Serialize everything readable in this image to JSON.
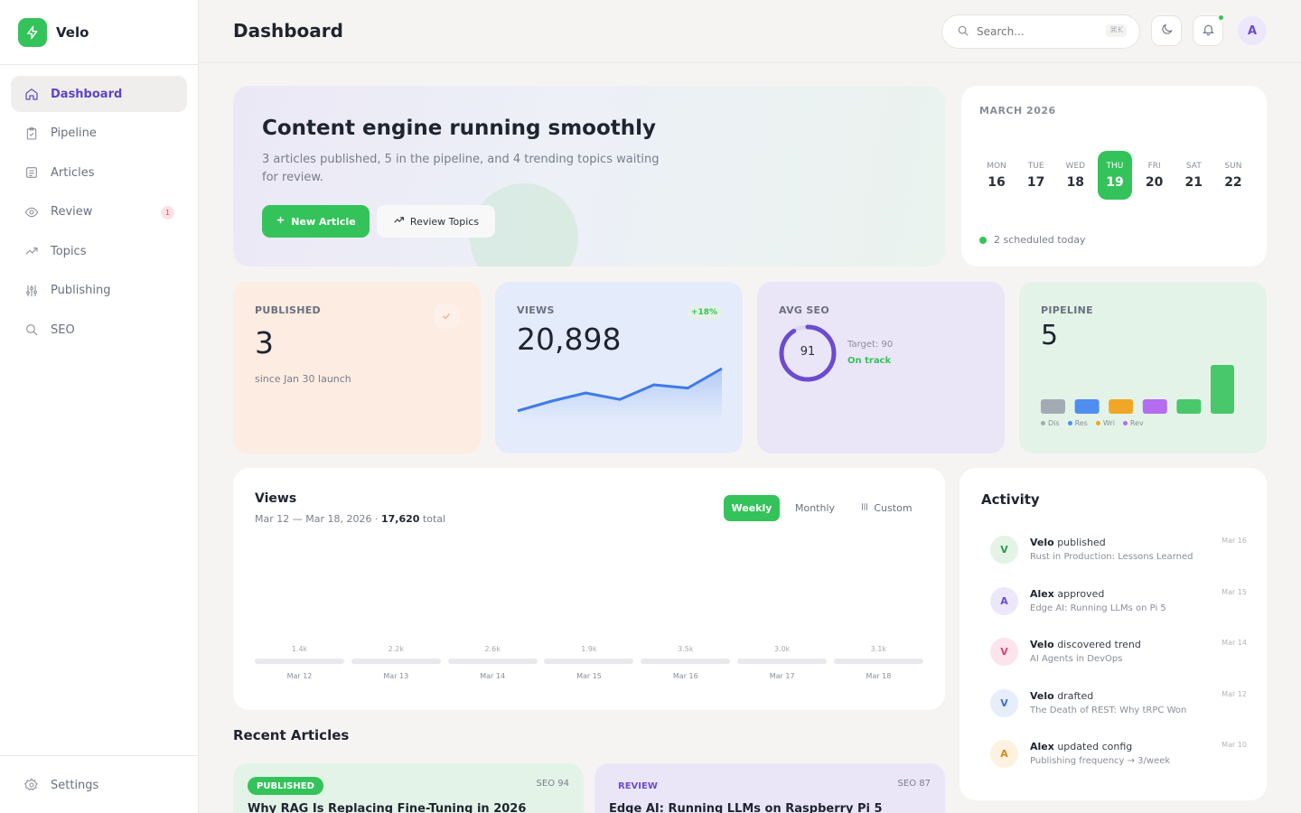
{
  "brand": {
    "name": "Velo"
  },
  "sidebar": {
    "items": [
      {
        "label": "Dashboard",
        "icon": "home-icon"
      },
      {
        "label": "Pipeline",
        "icon": "clipboard-icon"
      },
      {
        "label": "Articles",
        "icon": "document-icon"
      },
      {
        "label": "Review",
        "icon": "eye-icon",
        "badge": "1"
      },
      {
        "label": "Topics",
        "icon": "trending-icon"
      },
      {
        "label": "Publishing",
        "icon": "sliders-icon"
      },
      {
        "label": "SEO",
        "icon": "search-icon"
      }
    ],
    "settings_label": "Settings"
  },
  "header": {
    "title": "Dashboard",
    "search_placeholder": "Search...",
    "search_shortcut": "⌘K",
    "avatar_initial": "A"
  },
  "hero": {
    "title": "Content engine running smoothly",
    "subtitle": "3 articles published, 5 in the pipeline, and 4 trending topics waiting for review.",
    "primary_button": "New Article",
    "secondary_button": "Review Topics"
  },
  "calendar": {
    "month": "MARCH 2026",
    "days": [
      {
        "dow": "MON",
        "num": "16"
      },
      {
        "dow": "TUE",
        "num": "17"
      },
      {
        "dow": "WED",
        "num": "18"
      },
      {
        "dow": "THU",
        "num": "19",
        "today": true
      },
      {
        "dow": "FRI",
        "num": "20"
      },
      {
        "dow": "SAT",
        "num": "21"
      },
      {
        "dow": "SUN",
        "num": "22"
      }
    ],
    "note": "2 scheduled today"
  },
  "stats": {
    "published": {
      "label": "PUBLISHED",
      "value": "3",
      "sub": "since Jan 30 launch"
    },
    "views": {
      "label": "VIEWS",
      "value": "20,898",
      "trend": "+18%",
      "sparkline": [
        12,
        18,
        23,
        19,
        28,
        26,
        38
      ]
    },
    "seo": {
      "label": "AVG SEO",
      "value": "91",
      "target": "Target: 90",
      "status": "On track",
      "fraction": 0.91
    },
    "pipeline": {
      "label": "PIPELINE",
      "value": "5",
      "bars": [
        {
          "color": "#a4aab3",
          "value": 1
        },
        {
          "color": "#4f8df0",
          "value": 1
        },
        {
          "color": "#f0a728",
          "value": 1
        },
        {
          "color": "#b46cf0",
          "value": 1
        },
        {
          "color": "#49c76b",
          "value": 1
        },
        {
          "color": "#49c76b",
          "value": 4
        }
      ],
      "legend": [
        {
          "label": "Dis",
          "color": "#a4aab3"
        },
        {
          "label": "Res",
          "color": "#4f8df0"
        },
        {
          "label": "Wri",
          "color": "#f0a728"
        },
        {
          "label": "Rev",
          "color": "#b46cf0"
        }
      ]
    }
  },
  "views_chart": {
    "title": "Views",
    "range": "Mar 12 — Mar 18, 2026 · ",
    "total_value": "17,620",
    "total_label": " total",
    "tabs": [
      "Weekly",
      "Monthly",
      "Custom"
    ],
    "points": [
      {
        "date": "Mar 12",
        "value": "1.4k"
      },
      {
        "date": "Mar 13",
        "value": "2.2k"
      },
      {
        "date": "Mar 14",
        "value": "2.6k"
      },
      {
        "date": "Mar 15",
        "value": "1.9k"
      },
      {
        "date": "Mar 16",
        "value": "3.5k"
      },
      {
        "date": "Mar 17",
        "value": "3.0k"
      },
      {
        "date": "Mar 18",
        "value": "3.1k"
      }
    ]
  },
  "recent_articles": {
    "title": "Recent Articles",
    "items": [
      {
        "status": "PUBLISHED",
        "seo": "SEO 94",
        "title": "Why RAG Is Replacing Fine-Tuning in 2026"
      },
      {
        "status": "REVIEW",
        "seo": "SEO 87",
        "title": "Edge AI: Running LLMs on Raspberry Pi 5"
      }
    ]
  },
  "activity": {
    "title": "Activity",
    "items": [
      {
        "initial": "V",
        "actor": "Velo",
        "action": " published",
        "detail": "Rust in Production: Lessons Learned",
        "date": "Mar 16",
        "bg": "#e3f4e6",
        "fg": "#2f9a4e"
      },
      {
        "initial": "A",
        "actor": "Alex",
        "action": " approved",
        "detail": "Edge AI: Running LLMs on Pi 5",
        "date": "Mar 15",
        "bg": "#ede7fb",
        "fg": "#6a4bd1"
      },
      {
        "initial": "V",
        "actor": "Velo",
        "action": " discovered trend",
        "detail": "AI Agents in DevOps",
        "date": "Mar 14",
        "bg": "#fde4ec",
        "fg": "#d6456e"
      },
      {
        "initial": "V",
        "actor": "Velo",
        "action": " drafted",
        "detail": "The Death of REST: Why tRPC Won",
        "date": "Mar 12",
        "bg": "#e6eefc",
        "fg": "#3b6fd6"
      },
      {
        "initial": "A",
        "actor": "Alex",
        "action": " updated config",
        "detail": "Publishing frequency → 3/week",
        "date": "Mar 10",
        "bg": "#fdf1e0",
        "fg": "#d08a1e"
      }
    ]
  }
}
